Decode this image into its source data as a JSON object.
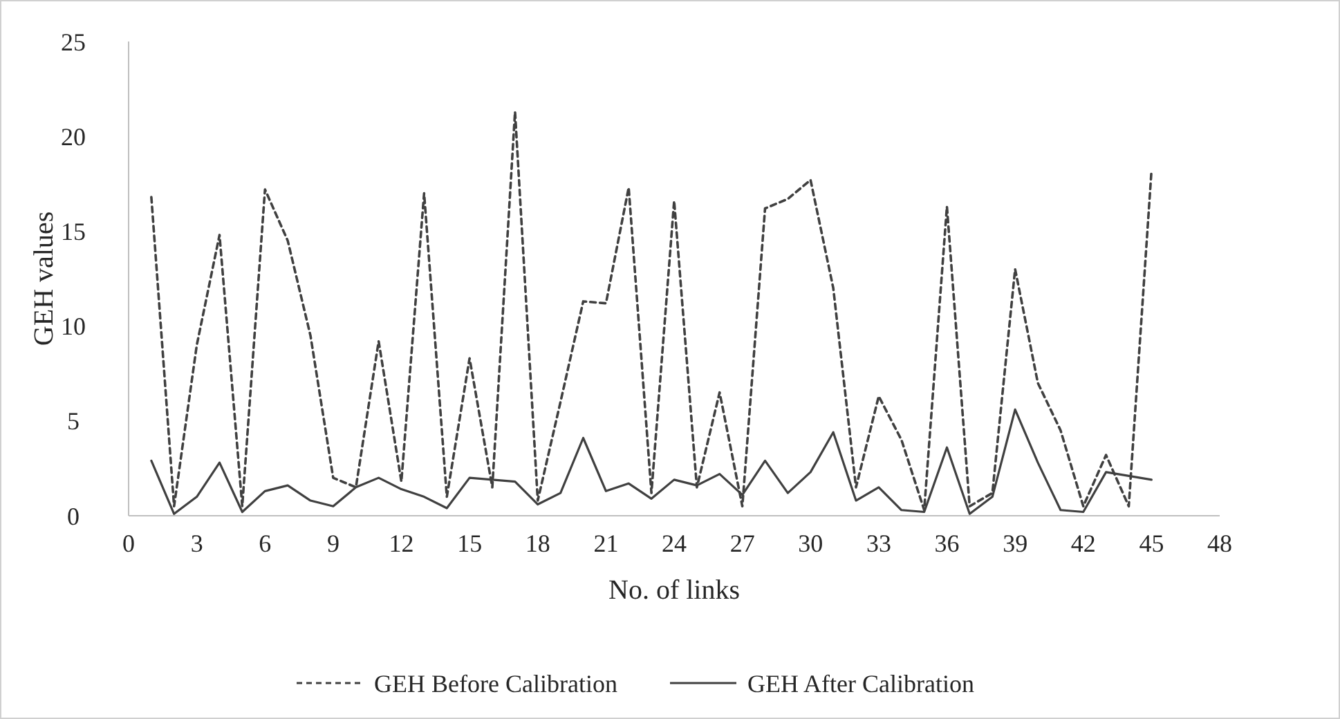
{
  "chart_data": {
    "type": "line",
    "xlabel": "No. of links",
    "ylabel": "GEH values",
    "x": [
      1,
      2,
      3,
      4,
      5,
      6,
      7,
      8,
      9,
      10,
      11,
      12,
      13,
      14,
      15,
      16,
      17,
      18,
      19,
      20,
      21,
      22,
      23,
      24,
      25,
      26,
      27,
      28,
      29,
      30,
      31,
      32,
      33,
      34,
      35,
      36,
      37,
      38,
      39,
      40,
      41,
      42,
      43,
      44,
      45
    ],
    "series": [
      {
        "name": "GEH Before Calibration",
        "color": "#404040",
        "line_style": "dashed",
        "values": [
          16.8,
          0.5,
          9,
          14.8,
          0.5,
          17.2,
          14.5,
          9.5,
          2,
          1.5,
          9.2,
          1.8,
          17,
          1,
          8.3,
          1.5,
          21.3,
          0.8,
          6,
          11.3,
          11.2,
          17.3,
          1.2,
          16.6,
          1.5,
          6.5,
          0.5,
          16.2,
          16.7,
          17.7,
          12,
          1.5,
          6.3,
          4,
          0.3,
          16.3,
          0.5,
          1.2,
          13,
          7,
          4.5,
          0.5,
          3.2,
          0.5,
          18.2
        ]
      },
      {
        "name": "GEH After Calibration",
        "color": "#404040",
        "line_style": "solid",
        "values": [
          2.9,
          0.1,
          1,
          2.8,
          0.2,
          1.3,
          1.6,
          0.8,
          0.5,
          1.5,
          2,
          1.4,
          1,
          0.4,
          2,
          1.9,
          1.8,
          0.6,
          1.2,
          4.1,
          1.3,
          1.7,
          0.9,
          1.9,
          1.6,
          2.2,
          1.1,
          2.9,
          1.2,
          2.3,
          4.4,
          0.8,
          1.5,
          0.3,
          0.2,
          3.6,
          0.1,
          1,
          5.6,
          2.8,
          0.3,
          0.2,
          2.3,
          2.1,
          1.9
        ]
      }
    ],
    "xlim": [
      0,
      48
    ],
    "xticks": [
      0,
      3,
      6,
      9,
      12,
      15,
      18,
      21,
      24,
      27,
      30,
      33,
      36,
      39,
      42,
      45,
      48
    ],
    "ylim": [
      0,
      25
    ],
    "yticks": [
      0,
      5,
      10,
      15,
      20,
      25
    ],
    "grid": false,
    "legend": "bottom",
    "marker": "none"
  }
}
